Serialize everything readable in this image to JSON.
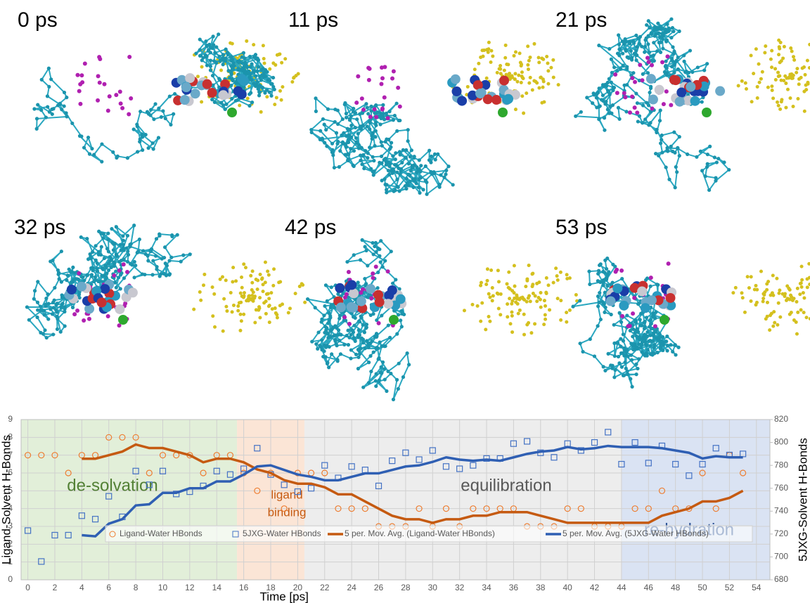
{
  "panels": [
    "0 ps",
    "11 ps",
    "21 ps",
    "32 ps",
    "42 ps",
    "53 ps"
  ],
  "chart_data": {
    "type": "combo",
    "x_label": "Time [ps]",
    "y_label": "Ligand-Solvent H-Bonds",
    "y2_label": "5JXG-Solvent H-Bonds",
    "xlim": [
      -0.5,
      55
    ],
    "xticks": [
      0,
      2,
      4,
      6,
      8,
      10,
      12,
      14,
      16,
      18,
      20,
      22,
      24,
      26,
      28,
      30,
      32,
      34,
      36,
      38,
      40,
      42,
      44,
      46,
      48,
      50,
      52,
      54
    ],
    "ylim": [
      0,
      9
    ],
    "yticks": [
      0,
      1,
      2,
      3,
      4,
      5,
      6,
      7,
      8,
      9
    ],
    "y2lim": [
      680,
      820
    ],
    "y2ticks": [
      680,
      700,
      720,
      740,
      760,
      780,
      800,
      820
    ],
    "grid": true,
    "regions": [
      {
        "start": -0.5,
        "end": 15.5,
        "color": "#e2efd9"
      },
      {
        "start": 15.5,
        "end": 20.5,
        "color": "#fbe5d6"
      },
      {
        "start": 20.5,
        "end": 44,
        "color": "#ededed"
      },
      {
        "start": 44,
        "end": 55,
        "color": "#dae3f3"
      }
    ],
    "annotations": [
      {
        "text": "de-solvation",
        "color": "#538135"
      },
      {
        "text": "ligand",
        "color": "#c55a11"
      },
      {
        "text": "binding",
        "color": "#c55a11"
      },
      {
        "text": "equilibration",
        "color": "#595959"
      },
      {
        "text": "re-hydration",
        "color": "#2f5597"
      }
    ],
    "series": [
      {
        "name": "Ligand-Water HBonds",
        "type": "scatter",
        "marker": "circle",
        "color": "#ed7d31",
        "axis": "y",
        "x": [
          0,
          1,
          2,
          3,
          4,
          5,
          6,
          7,
          8,
          9,
          10,
          11,
          12,
          13,
          14,
          15,
          16,
          17,
          18,
          19,
          20,
          21,
          22,
          23,
          24,
          25,
          26,
          27,
          28,
          29,
          30,
          31,
          32,
          33,
          34,
          35,
          36,
          37,
          38,
          39,
          40,
          41,
          42,
          43,
          44,
          45,
          46,
          47,
          48,
          49,
          50,
          51,
          52,
          53
        ],
        "values": [
          7,
          7,
          7,
          6,
          7,
          7,
          8,
          8,
          8,
          6,
          7,
          7,
          7,
          6,
          7,
          7,
          6,
          5,
          6,
          4,
          6,
          6,
          6,
          4,
          4,
          4,
          3,
          3,
          3,
          4,
          3,
          4,
          3,
          4,
          4,
          4,
          4,
          3,
          3,
          3,
          4,
          4,
          3,
          3,
          3,
          4,
          4,
          5,
          4,
          4,
          6,
          4,
          7,
          6
        ]
      },
      {
        "name": "5JXG-Water HBonds",
        "type": "scatter",
        "marker": "square",
        "color": "#4472c4",
        "axis": "y2",
        "x": [
          0,
          1,
          2,
          3,
          4,
          5,
          6,
          7,
          8,
          9,
          10,
          11,
          12,
          13,
          14,
          15,
          16,
          17,
          18,
          19,
          20,
          21,
          22,
          23,
          24,
          25,
          26,
          27,
          28,
          29,
          30,
          31,
          32,
          33,
          34,
          35,
          36,
          37,
          38,
          39,
          40,
          41,
          42,
          43,
          44,
          45,
          46,
          47,
          48,
          49,
          50,
          51,
          52,
          53
        ],
        "values": [
          723,
          696,
          719,
          719,
          736,
          733,
          753,
          735,
          775,
          763,
          775,
          755,
          757,
          762,
          775,
          772,
          777,
          795,
          772,
          763,
          757,
          760,
          780,
          769,
          779,
          776,
          762,
          784,
          791,
          785,
          793,
          779,
          777,
          780,
          786,
          786,
          799,
          801,
          791,
          787,
          799,
          793,
          800,
          809,
          781,
          800,
          782,
          797,
          781,
          771,
          781,
          795,
          789,
          790
        ]
      },
      {
        "name": "5 per. Mov. Avg. (Ligand-Water HBonds)",
        "type": "line",
        "color": "#c55a11",
        "axis": "y",
        "x": [
          4,
          5,
          6,
          7,
          8,
          9,
          10,
          11,
          12,
          13,
          14,
          15,
          16,
          17,
          18,
          19,
          20,
          21,
          22,
          23,
          24,
          25,
          26,
          27,
          28,
          29,
          30,
          31,
          32,
          33,
          34,
          35,
          36,
          37,
          38,
          39,
          40,
          41,
          42,
          43,
          44,
          45,
          46,
          47,
          48,
          49,
          50,
          51,
          52,
          53
        ],
        "values": [
          6.8,
          6.8,
          7.0,
          7.2,
          7.6,
          7.4,
          7.4,
          7.2,
          7.0,
          6.6,
          6.8,
          6.8,
          6.6,
          6.2,
          6.0,
          5.6,
          5.4,
          5.4,
          5.2,
          4.8,
          4.8,
          4.4,
          4.0,
          3.6,
          3.4,
          3.4,
          3.2,
          3.4,
          3.4,
          3.6,
          3.6,
          3.8,
          3.8,
          3.8,
          3.6,
          3.4,
          3.2,
          3.2,
          3.2,
          3.2,
          3.2,
          3.2,
          3.2,
          3.6,
          3.8,
          4.0,
          4.4,
          4.4,
          4.6,
          5.0
        ]
      },
      {
        "name": "5 per. Mov. Avg. (5JXG-Water HBonds)",
        "type": "line",
        "color": "#2f5fb3",
        "axis": "y2",
        "x": [
          4,
          5,
          6,
          7,
          8,
          9,
          10,
          11,
          12,
          13,
          14,
          15,
          16,
          17,
          18,
          19,
          20,
          21,
          22,
          23,
          24,
          25,
          26,
          27,
          28,
          29,
          30,
          31,
          32,
          33,
          34,
          35,
          36,
          37,
          38,
          39,
          40,
          41,
          42,
          43,
          44,
          45,
          46,
          47,
          48,
          49,
          50,
          51,
          52,
          53
        ],
        "values": [
          719,
          718,
          729,
          733,
          745,
          746,
          756,
          756,
          760,
          760,
          766,
          766,
          772,
          779,
          780,
          776,
          772,
          770,
          767,
          767,
          770,
          773,
          773,
          776,
          779,
          780,
          783,
          787,
          785,
          784,
          785,
          784,
          787,
          790,
          792,
          793,
          796,
          794,
          795,
          797,
          796,
          796,
          796,
          795,
          793,
          791,
          786,
          788,
          787,
          787
        ]
      }
    ]
  }
}
